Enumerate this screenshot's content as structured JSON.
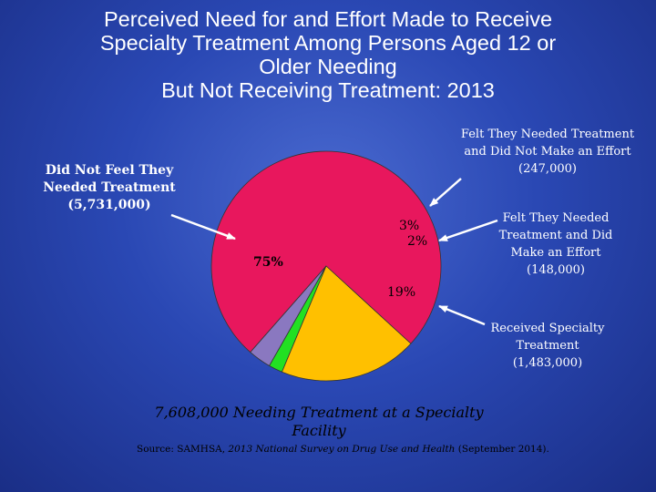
{
  "title_lines": [
    "Perceived Need for and Effort Made to Receive",
    "Specialty Treatment Among Persons Aged 12 or",
    "Older Needing",
    "But Not Receiving Treatment: 2013"
  ],
  "chart_data": {
    "type": "pie",
    "title": "Perceived Need for and Effort Made to Receive Specialty Treatment Among Persons Aged 12 or Older Needing But Not Receiving Treatment: 2013",
    "slices": [
      {
        "label_lines": [
          "Did Not Feel They",
          "Needed Treatment",
          "(5,731,000)"
        ],
        "value": 5731000,
        "percent": "75%",
        "color": "#e8175d"
      },
      {
        "label_lines": [
          "Felt They Needed Treatment",
          "and Did Not Make an Effort",
          "(247,000)"
        ],
        "value": 247000,
        "percent": "3%",
        "color": "#8a78c0"
      },
      {
        "label_lines": [
          "Felt They Needed",
          "Treatment and Did",
          "Make an Effort",
          "(148,000)"
        ],
        "value": 148000,
        "percent": "2%",
        "color": "#22e022"
      },
      {
        "label_lines": [
          "Received Specialty",
          "Treatment",
          "(1,483,000)"
        ],
        "value": 1483000,
        "percent": "19%",
        "color": "#ffc000"
      }
    ],
    "total_lines": [
      "7,608,000 Needing Treatment at a Specialty",
      "Facility"
    ]
  },
  "source": {
    "prefix": "Source: SAMHSA, ",
    "italic": "2013 National Survey on Drug Use and Health",
    "suffix": " (September 2014)."
  }
}
